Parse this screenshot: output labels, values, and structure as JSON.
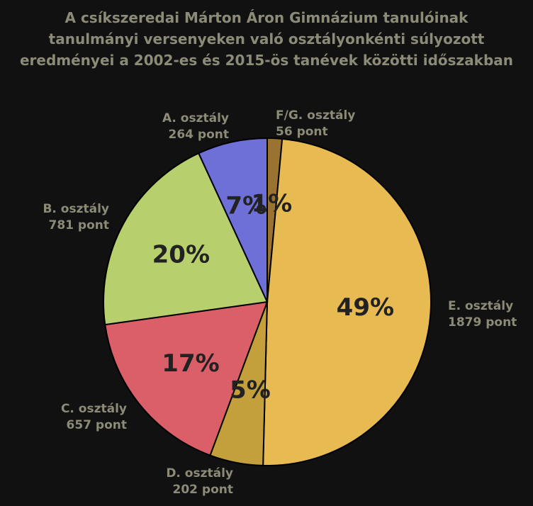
{
  "chart_data": {
    "type": "pie",
    "title_lines": [
      "A csíkszeredai Márton Áron Gimnázium tanulóinak",
      "tanulmányi versenyeken való osztályonkénti súlyozott",
      "eredményei a 2002-es és 2015-ös tanévek közötti időszakban"
    ],
    "slices": [
      {
        "category": "F/G. osztály",
        "points_label": "56 pont",
        "value": 56,
        "percent_label": "1%",
        "color": "#9a7331"
      },
      {
        "category": "E. osztály",
        "points_label": "1879 pont",
        "value": 1879,
        "percent_label": "49%",
        "color": "#e8ba52"
      },
      {
        "category": "D. osztály",
        "points_label": "202 pont",
        "value": 202,
        "percent_label": "5%",
        "color": "#c3a03b"
      },
      {
        "category": "C. osztály",
        "points_label": "657 pont",
        "value": 657,
        "percent_label": "17%",
        "color": "#db5f69"
      },
      {
        "category": "B. osztály",
        "points_label": "781 pont",
        "value": 781,
        "percent_label": "20%",
        "color": "#b7d06d"
      },
      {
        "category": "A. osztály",
        "points_label": "264 pont",
        "value": 264,
        "percent_label": "7%",
        "color": "#6f6fd8"
      }
    ],
    "start_angle": "12 o'clock",
    "direction": "clockwise",
    "legend": "none"
  }
}
